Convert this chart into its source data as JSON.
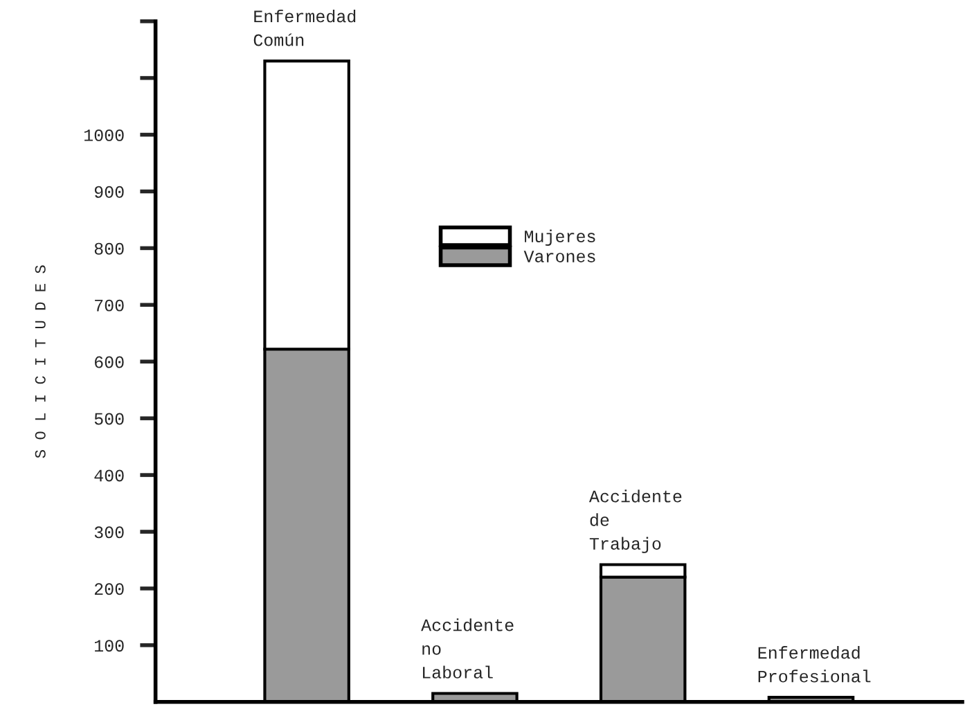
{
  "chart_data": {
    "type": "bar",
    "stacked": true,
    "categories": [
      "Enfermedad\nComún",
      "Accidente\nno\nLaboral",
      "Accidente\nde\nTrabajo",
      "Enfermedad\nProfesional"
    ],
    "ylabel": "S O L I C I T U D E S",
    "series": [
      {
        "name": "Varones",
        "color": "#9a9a9a",
        "values": [
          622,
          15,
          220,
          8
        ]
      },
      {
        "name": "Mujeres",
        "color": "#ffffff",
        "values": [
          508,
          null,
          22,
          null
        ]
      }
    ],
    "ylim": [
      0,
      1200
    ],
    "yticks": [
      100,
      200,
      300,
      400,
      500,
      600,
      700,
      800,
      900,
      1000,
      {
        "value": 1100,
        "label": null
      },
      {
        "value": 1200,
        "label": null
      }
    ],
    "legend": "top",
    "grid": false
  }
}
